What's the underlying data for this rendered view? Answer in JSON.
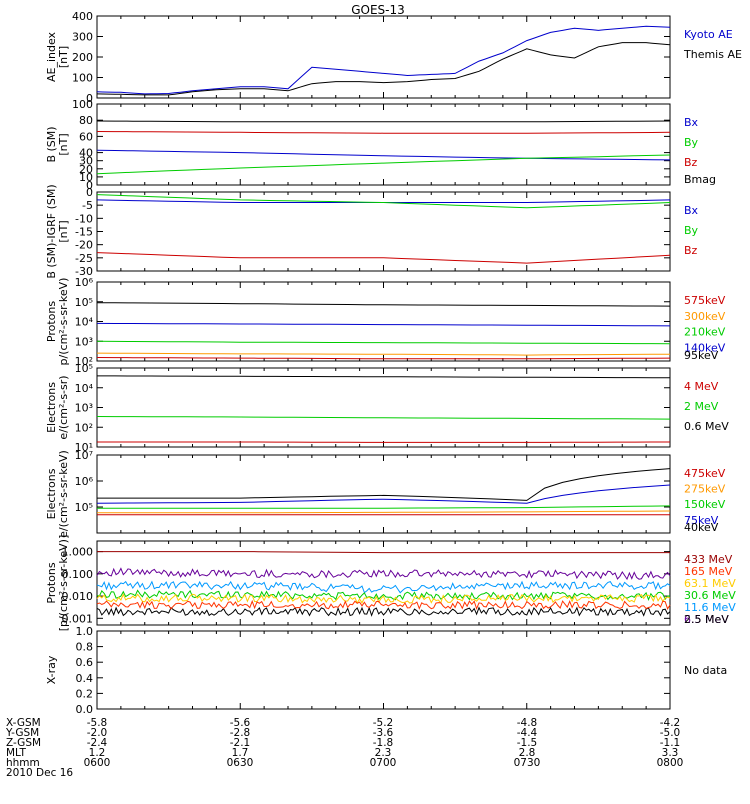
{
  "title": "GOES-13",
  "panels": [
    {
      "id": "ae",
      "ylabel": [
        "AE_index",
        "[nT]"
      ],
      "scale": "linear",
      "ylim": [
        0,
        400
      ],
      "ticks": [
        {
          "v": 0,
          "label": "0"
        },
        {
          "v": 100,
          "label": "100"
        },
        {
          "v": 200,
          "label": "200"
        },
        {
          "v": 300,
          "label": "300"
        },
        {
          "v": 400,
          "label": "400"
        }
      ],
      "legend": [
        {
          "label": "Kyoto AE",
          "color": "#0000cc"
        },
        {
          "label": "Themis AE",
          "color": "#000000"
        }
      ]
    },
    {
      "id": "bsm",
      "ylabel": [
        "B (SM)",
        "[nT]"
      ],
      "scale": "linear",
      "ylim": [
        0,
        100
      ],
      "ticks": [
        {
          "v": 0,
          "label": "0"
        },
        {
          "v": 10,
          "label": "10"
        },
        {
          "v": 20,
          "label": "20"
        },
        {
          "v": 30,
          "label": "30"
        },
        {
          "v": 40,
          "label": "40"
        },
        {
          "v": 60,
          "label": "60"
        },
        {
          "v": 80,
          "label": "80"
        },
        {
          "v": 100,
          "label": "100"
        }
      ],
      "legend": [
        {
          "label": "Bx",
          "color": "#0000cc"
        },
        {
          "label": "By",
          "color": "#00cc00"
        },
        {
          "label": "Bz",
          "color": "#cc0000"
        },
        {
          "label": "Bmag",
          "color": "#000000"
        }
      ]
    },
    {
      "id": "bigrf",
      "ylabel": [
        "B (SM)-IGRF (SM)",
        "[nT]"
      ],
      "scale": "linear",
      "ylim": [
        -30,
        0
      ],
      "ticks": [
        {
          "v": 0,
          "label": "0"
        },
        {
          "v": -5,
          "label": "-5"
        },
        {
          "v": -10,
          "label": "-10"
        },
        {
          "v": -15,
          "label": "-15"
        },
        {
          "v": -20,
          "label": "-20"
        },
        {
          "v": -25,
          "label": "-25"
        },
        {
          "v": -30,
          "label": "-30"
        }
      ],
      "legend": [
        {
          "label": "Bx",
          "color": "#0000cc"
        },
        {
          "label": "By",
          "color": "#00cc00"
        },
        {
          "label": "Bz",
          "color": "#cc0000"
        }
      ]
    },
    {
      "id": "protons1",
      "ylabel": [
        "Protons",
        "p/(cm²-s-sr-keV)"
      ],
      "scale": "log",
      "ylim": [
        100,
        1000000
      ],
      "ticks": [
        {
          "v": 100,
          "label": "10²"
        },
        {
          "v": 1000,
          "label": "10³"
        },
        {
          "v": 10000,
          "label": "10⁴"
        },
        {
          "v": 100000,
          "label": "10⁵"
        },
        {
          "v": 1000000,
          "label": "10⁶"
        }
      ],
      "legend": [
        {
          "label": "575keV",
          "color": "#cc0000"
        },
        {
          "label": "300keV",
          "color": "#ff9900"
        },
        {
          "label": "210keV",
          "color": "#00cc00"
        },
        {
          "label": "140keV",
          "color": "#0000cc"
        },
        {
          "label": "95keV",
          "color": "#000000"
        }
      ]
    },
    {
      "id": "electrons1",
      "ylabel": [
        "Electrons",
        "e/(cm²-s-sr)"
      ],
      "scale": "log",
      "ylim": [
        10,
        100000
      ],
      "ticks": [
        {
          "v": 10,
          "label": "10¹"
        },
        {
          "v": 100,
          "label": "10²"
        },
        {
          "v": 1000,
          "label": "10³"
        },
        {
          "v": 10000,
          "label": "10⁴"
        },
        {
          "v": 100000,
          "label": "10⁵"
        }
      ],
      "legend": [
        {
          "label": "4 MeV",
          "color": "#cc0000"
        },
        {
          "label": "2 MeV",
          "color": "#00cc00"
        },
        {
          "label": "0.6 MeV",
          "color": "#000000"
        }
      ]
    },
    {
      "id": "electrons2",
      "ylabel": [
        "Electrons",
        "e/(cm²-s-sr-keV)"
      ],
      "scale": "log",
      "ylim": [
        10000,
        10000000
      ],
      "ticks": [
        {
          "v": 100000,
          "label": "10⁵"
        },
        {
          "v": 1000000,
          "label": "10⁶"
        },
        {
          "v": 10000000,
          "label": "10⁷"
        }
      ],
      "legend": [
        {
          "label": "475keV",
          "color": "#cc0000"
        },
        {
          "label": "275keV",
          "color": "#ff9900"
        },
        {
          "label": "150keV",
          "color": "#00cc00"
        },
        {
          "label": "75keV",
          "color": "#0000cc"
        },
        {
          "label": "40keV",
          "color": "#000000"
        }
      ]
    },
    {
      "id": "protons2",
      "ylabel": [
        "Protons",
        "[p/(cm²-s-sr-keV)]"
      ],
      "scale": "log",
      "ylim": [
        0.0005,
        3
      ],
      "ticks": [
        {
          "v": 0.001,
          "label": "0.001"
        },
        {
          "v": 0.01,
          "label": "0.010"
        },
        {
          "v": 0.1,
          "label": "0.100"
        },
        {
          "v": 1,
          "label": "1.000"
        }
      ],
      "legend": [
        {
          "label": "433 MeV",
          "color": "#990000"
        },
        {
          "label": "165 MeV",
          "color": "#ff3300"
        },
        {
          "label": "63.1 MeV",
          "color": "#ffcc00"
        },
        {
          "label": "30.6 MeV",
          "color": "#00cc00"
        },
        {
          "label": "11.6 MeV",
          "color": "#0099ff"
        },
        {
          "label": "6.5 MeV",
          "color": "#660099"
        },
        {
          "label": "2.5 MeV",
          "color": "#000000"
        }
      ]
    },
    {
      "id": "xray",
      "ylabel": [
        "X-ray",
        ""
      ],
      "scale": "linear",
      "ylim": [
        0,
        1
      ],
      "ticks": [
        {
          "v": 0,
          "label": "0.0"
        },
        {
          "v": 0.2,
          "label": "0.2"
        },
        {
          "v": 0.4,
          "label": "0.4"
        },
        {
          "v": 0.6,
          "label": "0.6"
        },
        {
          "v": 0.8,
          "label": "0.8"
        },
        {
          "v": 1.0,
          "label": "1.0"
        }
      ],
      "legend": [],
      "note": "No data"
    }
  ],
  "footer": {
    "row_labels": [
      "X-GSM",
      "Y-GSM",
      "Z-GSM",
      "MLT",
      "hhmm",
      "2010 Dec 16"
    ],
    "columns": [
      {
        "values": [
          "-5.8",
          "-2.0",
          "-2.4",
          "1.2",
          "0600"
        ]
      },
      {
        "values": [
          "-5.6",
          "-2.8",
          "-2.1",
          "1.7",
          "0630"
        ]
      },
      {
        "values": [
          "-5.2",
          "-3.6",
          "-1.8",
          "2.3",
          "0700"
        ]
      },
      {
        "values": [
          "-4.8",
          "-4.4",
          "-1.5",
          "2.8",
          "0730"
        ]
      },
      {
        "values": [
          "-4.2",
          "-5.0",
          "-1.1",
          "3.3",
          "0800"
        ]
      }
    ]
  },
  "chart_data": {
    "type": "line",
    "x_range": [
      "0600",
      "0800"
    ],
    "panels": [
      {
        "panel": "AE_index [nT]",
        "x": [
          "0600",
          "0605",
          "0610",
          "0615",
          "0620",
          "0625",
          "0630",
          "0635",
          "0640",
          "0645",
          "0650",
          "0655",
          "0700",
          "0705",
          "0710",
          "0715",
          "0720",
          "0725",
          "0730",
          "0735",
          "0740",
          "0745",
          "0750",
          "0755",
          "0800"
        ],
        "series": [
          {
            "name": "Kyoto AE",
            "values": [
              30,
              28,
              20,
              22,
              35,
              45,
              55,
              55,
              45,
              150,
              140,
              130,
              120,
              110,
              115,
              120,
              180,
              220,
              280,
              320,
              340,
              330,
              340,
              350,
              345
            ]
          },
          {
            "name": "Themis AE",
            "values": [
              20,
              18,
              15,
              15,
              30,
              40,
              45,
              45,
              35,
              70,
              80,
              80,
              75,
              80,
              90,
              95,
              130,
              190,
              240,
              210,
              195,
              250,
              270,
              270,
              260
            ]
          }
        ]
      },
      {
        "panel": "B (SM) [nT]",
        "x": [
          "0600",
          "0630",
          "0700",
          "0730",
          "0800"
        ],
        "series": [
          {
            "name": "Bmag",
            "values": [
              79,
              78,
              78,
              78,
              79
            ]
          },
          {
            "name": "Bz",
            "values": [
              66,
              65,
              64,
              64,
              65
            ]
          },
          {
            "name": "Bx",
            "values": [
              43,
              40,
              36,
              33,
              31
            ]
          },
          {
            "name": "By",
            "values": [
              14,
              21,
              27,
              33,
              37
            ]
          }
        ]
      },
      {
        "panel": "B (SM)-IGRF (SM) [nT]",
        "x": [
          "0600",
          "0630",
          "0700",
          "0730",
          "0800"
        ],
        "series": [
          {
            "name": "Bx",
            "values": [
              -3,
              -4,
              -4,
              -4,
              -3
            ]
          },
          {
            "name": "By",
            "values": [
              -1,
              -3,
              -4,
              -6,
              -4
            ]
          },
          {
            "name": "Bz",
            "values": [
              -23,
              -25,
              -25,
              -27,
              -24
            ]
          }
        ]
      },
      {
        "panel": "Protons p/(cm²-s-sr-keV)",
        "x": [
          "0600",
          "0630",
          "0700",
          "0730",
          "0800"
        ],
        "series": [
          {
            "name": "95keV",
            "values": [
              90000,
              80000,
              70000,
              65000,
              60000
            ]
          },
          {
            "name": "140keV",
            "values": [
              8000,
              7500,
              7000,
              6500,
              6000
            ]
          },
          {
            "name": "210keV",
            "values": [
              1000,
              900,
              850,
              800,
              750
            ]
          },
          {
            "name": "300keV",
            "values": [
              250,
              230,
              220,
              200,
              220
            ]
          },
          {
            "name": "575keV",
            "values": [
              150,
              140,
              130,
              130,
              140
            ]
          }
        ]
      },
      {
        "panel": "Electrons e/(cm²-s-sr)",
        "x": [
          "0600",
          "0630",
          "0700",
          "0730",
          "0800"
        ],
        "series": [
          {
            "name": "0.6 MeV",
            "values": [
              40000,
              38000,
              36000,
              34000,
              32000
            ]
          },
          {
            "name": "2 MeV",
            "values": [
              350,
              330,
              300,
              280,
              260
            ]
          },
          {
            "name": "4 MeV",
            "values": [
              18,
              18,
              17,
              17,
              18
            ]
          }
        ]
      },
      {
        "panel": "Electrons e/(cm²-s-sr-keV)",
        "x": [
          "0600",
          "0630",
          "0700",
          "0730",
          "0800"
        ],
        "series": [
          {
            "name": "40keV",
            "values": [
              220000,
              220000,
              280000,
              180000,
              3000000
            ]
          },
          {
            "name": "75keV",
            "values": [
              140000,
              150000,
              200000,
              140000,
              700000
            ]
          },
          {
            "name": "150keV",
            "values": [
              90000,
              90000,
              90000,
              95000,
              110000
            ]
          },
          {
            "name": "275keV",
            "values": [
              60000,
              60000,
              62000,
              65000,
              70000
            ]
          },
          {
            "name": "475keV",
            "values": [
              50000,
              50000,
              50000,
              50000,
              50000
            ]
          }
        ]
      },
      {
        "panel": "Protons [p/(cm²-s-sr-keV)]",
        "x": [
          "0600",
          "0630",
          "0700",
          "0730",
          "0800"
        ],
        "series": [
          {
            "name": "2.5 MeV",
            "values": [
              0.002,
              0.002,
              0.002,
              0.002,
              0.002
            ]
          },
          {
            "name": "6.5 MeV",
            "values": [
              0.12,
              0.1,
              0.1,
              0.1,
              0.08
            ]
          },
          {
            "name": "11.6 MeV",
            "values": [
              0.03,
              0.03,
              0.02,
              0.03,
              0.03
            ]
          },
          {
            "name": "30.6 MeV",
            "values": [
              0.012,
              0.012,
              0.01,
              0.01,
              0.01
            ]
          },
          {
            "name": "63.1 MeV",
            "values": [
              0.008,
              0.008,
              0.007,
              0.008,
              0.008
            ]
          },
          {
            "name": "165 MeV",
            "values": [
              0.004,
              0.004,
              0.004,
              0.004,
              0.004
            ]
          },
          {
            "name": "433 MeV",
            "values": [
              1.0,
              1.0,
              0.9,
              0.9,
              0.9
            ]
          }
        ]
      },
      {
        "panel": "X-ray",
        "x": [],
        "series": []
      }
    ]
  }
}
